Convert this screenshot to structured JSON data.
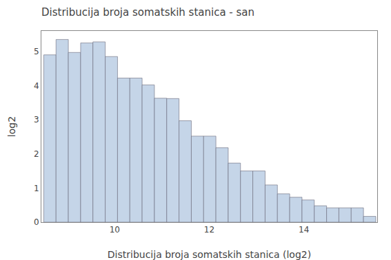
{
  "chart_data": {
    "type": "histogram",
    "title": "Distribucija broja somatskih stanica - san",
    "xlabel": "Distribucija broja somatskih stanica (log2)",
    "ylabel": "log2",
    "color": "#c5d5e8",
    "bins": [
      8.5,
      8.76,
      9.02,
      9.28,
      9.54,
      9.8,
      10.06,
      10.32,
      10.58,
      10.84,
      11.1,
      11.36,
      11.62,
      11.88,
      12.14,
      12.4,
      12.66,
      12.92,
      13.18,
      13.44,
      13.7,
      13.96,
      14.22,
      14.48,
      14.74,
      15.0,
      15.26,
      15.52
    ],
    "values": [
      4.9,
      5.35,
      4.97,
      5.25,
      5.28,
      4.85,
      4.22,
      4.22,
      4.02,
      3.63,
      3.62,
      2.97,
      2.52,
      2.52,
      2.18,
      1.73,
      1.5,
      1.5,
      1.09,
      0.83,
      0.73,
      0.65,
      0.48,
      0.42,
      0.42,
      0.42,
      0.17
    ],
    "xlim": [
      8.45,
      15.55
    ],
    "ylim": [
      0,
      5.6
    ],
    "xticks": [
      10,
      12,
      14
    ],
    "yticks": [
      0,
      1,
      2,
      3,
      4,
      5
    ],
    "grid": false
  }
}
